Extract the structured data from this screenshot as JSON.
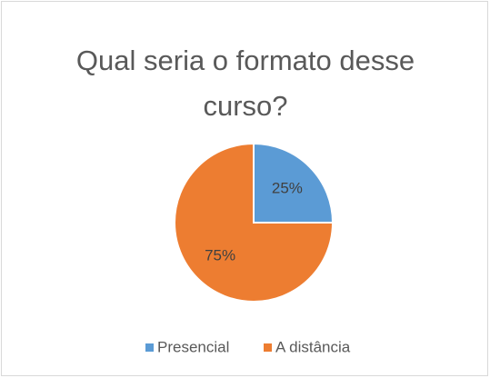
{
  "chart_data": {
    "type": "pie",
    "title": "Qual seria o formato desse curso?",
    "categories": [
      "Presencial",
      "A distância"
    ],
    "values": [
      25,
      75
    ],
    "value_labels": [
      "25%",
      "75%"
    ],
    "colors": [
      "#5b9bd5",
      "#ed7d31"
    ],
    "legend": "bottom"
  }
}
